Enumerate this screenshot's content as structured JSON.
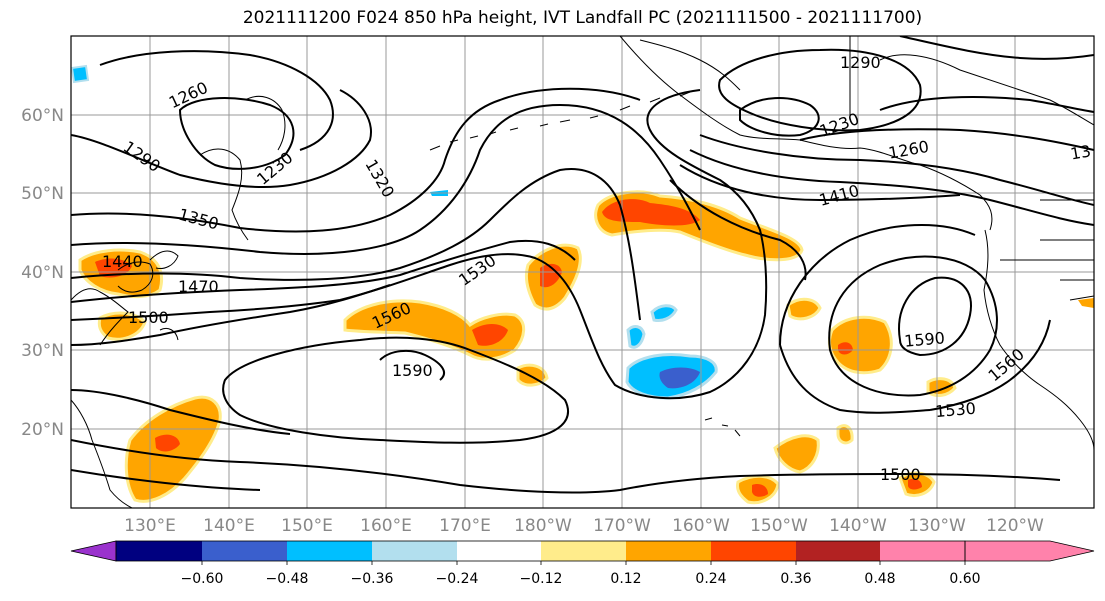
{
  "title": "2021111200 F024 850 hPa height, IVT Landfall PC (2021111500 - 2021111700)",
  "axes": {
    "longitude_labels": [
      "130°E",
      "140°E",
      "150°E",
      "160°E",
      "170°E",
      "180°W",
      "170°W",
      "160°W",
      "150°W",
      "140°W",
      "130°W",
      "120°W"
    ],
    "latitude_labels": [
      "20°N",
      "30°N",
      "40°N",
      "50°N",
      "60°N"
    ]
  },
  "contour_labels": [
    "1260",
    "1290",
    "1230",
    "1320",
    "1350",
    "1440",
    "1470",
    "1500",
    "1530",
    "1560",
    "1590",
    "1410",
    "1290",
    "1230",
    "1260",
    "13",
    "1590",
    "1560",
    "1530",
    "1500"
  ],
  "colorbar": {
    "ticks": [
      "−0.60",
      "−0.48",
      "−0.36",
      "−0.24",
      "−0.12",
      "0.12",
      "0.24",
      "0.36",
      "0.48",
      "0.60"
    ],
    "colors": [
      "#9a32cd",
      "#000080",
      "#3a5fcd",
      "#00bfff",
      "#b2dfee",
      "#ffffff",
      "#ffec8b",
      "#ffa500",
      "#ff4500",
      "#b22222",
      "#ff82ab"
    ]
  }
}
